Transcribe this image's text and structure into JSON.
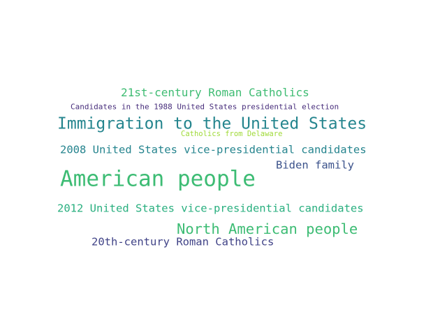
{
  "words": [
    {
      "text": "21st-century Roman Catholics",
      "color": "#3fbc73"
    },
    {
      "text": "Candidates in the 1988 United States presidential election",
      "color": "#472d7b"
    },
    {
      "text": "Immigration to the United States",
      "color": "#25858e"
    },
    {
      "text": "Catholics from Delaware",
      "color": "#a0da39"
    },
    {
      "text": "2008 United States vice-presidential candidates",
      "color": "#25848e"
    },
    {
      "text": "Biden family",
      "color": "#3b528b"
    },
    {
      "text": "American people",
      "color": "#3dbc74"
    },
    {
      "text": "2012 United States vice-presidential candidates",
      "color": "#29af7f"
    },
    {
      "text": "North American people",
      "color": "#3dbc74"
    },
    {
      "text": "20th-century Roman Catholics",
      "color": "#404387"
    }
  ]
}
